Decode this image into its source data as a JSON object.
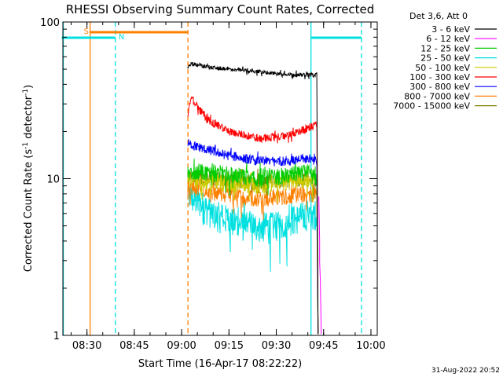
{
  "chart_data": {
    "type": "line",
    "title": "RHESSI Observing Summary Count Rates, Corrected",
    "xlabel": "Start Time (16-Apr-17 08:22:22)",
    "ylabel": "Corrected Count Rate (s",
    "ylabel_sup1": "-1",
    "ylabel_mid": " detector",
    "ylabel_sup2": "-1",
    "ylabel_end": ")",
    "yscale": "log",
    "ylim": [
      1,
      100
    ],
    "xlim": [
      "08:22:22",
      "10:02:00"
    ],
    "x_ticks": [
      "08:30",
      "08:45",
      "09:00",
      "09:15",
      "09:30",
      "09:45",
      "10:00"
    ],
    "y_ticks": [
      "1",
      "10",
      "100"
    ],
    "legend_header": "Det 3,6, Att 0",
    "legend_position": "right",
    "series": [
      {
        "name": "3 - 6 keV",
        "color": "#000000",
        "x": [
          "09:02",
          "09:03",
          "09:10",
          "09:20",
          "09:30",
          "09:35",
          "09:40",
          "09:43"
        ],
        "y": [
          52,
          54,
          51,
          49,
          47,
          46,
          46,
          46
        ]
      },
      {
        "name": "6 - 12 keV",
        "color": "#ff00ff",
        "x": [
          "09:43:30",
          "09:44"
        ],
        "y": [
          7,
          2
        ]
      },
      {
        "name": "12 - 25 keV",
        "color": "#00cc00",
        "x": [
          "09:02",
          "09:10",
          "09:25",
          "09:40",
          "09:43"
        ],
        "y": [
          11,
          11,
          10,
          11,
          10
        ]
      },
      {
        "name": "25 - 50 keV",
        "color": "#00e0e0",
        "x": [
          "09:02",
          "09:10",
          "09:20",
          "09:30",
          "09:40",
          "09:43"
        ],
        "y": [
          8,
          6,
          5,
          5,
          6,
          6
        ]
      },
      {
        "name": "50 - 100 keV",
        "color": "#cccc00",
        "x": [
          "09:02",
          "09:10",
          "09:25",
          "09:40",
          "09:43"
        ],
        "y": [
          10,
          9.5,
          9,
          10,
          9.5
        ]
      },
      {
        "name": "100 - 300 keV",
        "color": "#ff0000",
        "x": [
          "09:02",
          "09:03",
          "09:08",
          "09:15",
          "09:25",
          "09:35",
          "09:40",
          "09:43"
        ],
        "y": [
          25,
          33,
          24,
          20,
          18,
          19,
          21,
          22
        ]
      },
      {
        "name": "300 - 800 keV",
        "color": "#0000ff",
        "x": [
          "09:02",
          "09:05",
          "09:15",
          "09:25",
          "09:35",
          "09:40",
          "09:43"
        ],
        "y": [
          17,
          16,
          14,
          13,
          13,
          13.5,
          13
        ]
      },
      {
        "name": "800 - 7000 keV",
        "color": "#ff8000",
        "x": [
          "09:02",
          "09:10",
          "09:25",
          "09:40",
          "09:43"
        ],
        "y": [
          9,
          8,
          7.5,
          8,
          8
        ]
      },
      {
        "name": "7000 - 15000 keV",
        "color": "#808000",
        "x": [
          "09:02",
          "09:10",
          "09:25",
          "09:40",
          "09:43"
        ],
        "y": [
          10.5,
          10,
          9.5,
          10,
          9.5
        ]
      }
    ],
    "annotations": {
      "labels": [
        {
          "text": "S",
          "color": "#ff8000",
          "x": "08:29"
        },
        {
          "text": "N",
          "color": "#00e0e0",
          "x": "08:40"
        }
      ],
      "saa_bars": [
        {
          "color": "#ff8000",
          "x_start": "08:31",
          "x_end": "09:02"
        },
        {
          "color": "#00e0e0",
          "x_start": "08:22",
          "x_end": "08:39"
        },
        {
          "color": "#00e0e0",
          "x_start": "09:41",
          "x_end": "09:57"
        }
      ],
      "vlines": [
        {
          "color": "#00e0e0",
          "style": "solid",
          "x": "08:22:30"
        },
        {
          "color": "#ff8000",
          "style": "solid",
          "x": "08:31"
        },
        {
          "color": "#00e0e0",
          "style": "dashed",
          "x": "08:39"
        },
        {
          "color": "#ff8000",
          "style": "dashed",
          "x": "09:02"
        },
        {
          "color": "#00e0e0",
          "style": "solid",
          "x": "09:41"
        },
        {
          "color": "#00e0e0",
          "style": "dashed",
          "x": "09:57"
        }
      ]
    },
    "footer": "31-Aug-2022 20:52"
  }
}
